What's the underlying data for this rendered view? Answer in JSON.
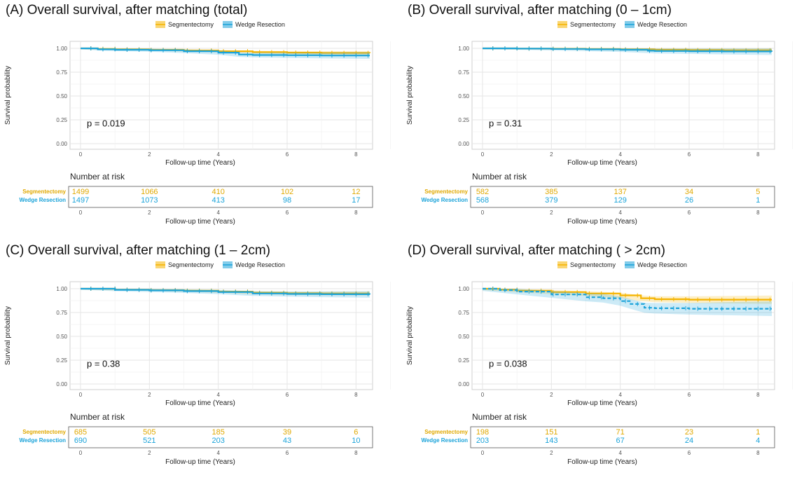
{
  "chart_data": [
    {
      "type": "line",
      "title": "(A) Overall survival, after matching (total)",
      "xlabel": "Follow-up time (Years)",
      "ylabel": "Survival probability",
      "ylim": [
        0,
        1
      ],
      "xlim": [
        0,
        8.4
      ],
      "yticks": [
        "0.00",
        "0.25",
        "0.50",
        "0.75",
        "1.00"
      ],
      "xticks": [
        "0",
        "2",
        "4",
        "6",
        "8"
      ],
      "p_value": "p = 0.019",
      "legend": [
        "Segmentectomy",
        "Wedge Resection"
      ],
      "series": [
        {
          "name": "Segmentectomy",
          "color": "#F5B400",
          "x": [
            0,
            0.5,
            1,
            2,
            3,
            4,
            5,
            6,
            7,
            8.4
          ],
          "y": [
            1.0,
            0.995,
            0.99,
            0.985,
            0.978,
            0.97,
            0.96,
            0.955,
            0.952,
            0.95
          ]
        },
        {
          "name": "Wedge Resection",
          "color": "#1BA3D9",
          "x": [
            0,
            0.5,
            1,
            2,
            3,
            4,
            4.6,
            5,
            6,
            7,
            8.4
          ],
          "y": [
            1.0,
            0.99,
            0.985,
            0.98,
            0.97,
            0.955,
            0.935,
            0.93,
            0.928,
            0.925,
            0.925
          ]
        }
      ],
      "risk_table": {
        "header": "Number at risk",
        "xlabel": "Follow-up time (Years)",
        "xticks": [
          "0",
          "2",
          "4",
          "6",
          "8"
        ],
        "rows": [
          {
            "label": "Segmentectomy",
            "values": [
              "1499",
              "1066",
              "410",
              "102",
              "12"
            ]
          },
          {
            "label": "Wedge Resection",
            "values": [
              "1497",
              "1073",
              "413",
              "98",
              "17"
            ]
          }
        ]
      }
    },
    {
      "type": "line",
      "title": "(B) Overall survival, after matching (0 – 1cm)",
      "xlabel": "Follow-up time (Years)",
      "ylabel": "Survival probability",
      "ylim": [
        0,
        1
      ],
      "xlim": [
        0,
        8.4
      ],
      "yticks": [
        "0.00",
        "0.25",
        "0.50",
        "0.75",
        "1.00"
      ],
      "xticks": [
        "0",
        "2",
        "4",
        "6",
        "8"
      ],
      "p_value": "p = 0.31",
      "legend": [
        "Segmentectomy",
        "Wedge Resection"
      ],
      "series": [
        {
          "name": "Segmentectomy",
          "color": "#F5B400",
          "x": [
            0,
            1,
            2,
            3,
            4,
            5,
            6,
            7,
            8.4
          ],
          "y": [
            1.0,
            0.998,
            0.996,
            0.994,
            0.99,
            0.985,
            0.982,
            0.98,
            0.98
          ]
        },
        {
          "name": "Wedge Resection",
          "color": "#1BA3D9",
          "x": [
            0,
            1,
            2,
            3,
            4,
            4.8,
            5,
            6,
            7,
            8.4
          ],
          "y": [
            1.0,
            0.998,
            0.994,
            0.99,
            0.985,
            0.975,
            0.972,
            0.97,
            0.968,
            0.965
          ]
        }
      ],
      "risk_table": {
        "header": "Number at risk",
        "xlabel": "Follow-up time (Years)",
        "xticks": [
          "0",
          "2",
          "4",
          "6",
          "8"
        ],
        "rows": [
          {
            "label": "Segmentectomy",
            "values": [
              "582",
              "385",
              "137",
              "34",
              "5"
            ]
          },
          {
            "label": "Wedge Resection",
            "values": [
              "568",
              "379",
              "129",
              "26",
              "1"
            ]
          }
        ]
      }
    },
    {
      "type": "line",
      "title": "(C) Overall survival, after matching (1 – 2cm)",
      "xlabel": "Follow-up time (Years)",
      "ylabel": "Survival probability",
      "ylim": [
        0,
        1
      ],
      "xlim": [
        0,
        8.4
      ],
      "yticks": [
        "0.00",
        "0.25",
        "0.50",
        "0.75",
        "1.00"
      ],
      "xticks": [
        "0",
        "2",
        "4",
        "6",
        "8"
      ],
      "p_value": "p = 0.38",
      "legend": [
        "Segmentectomy",
        "Wedge Resection"
      ],
      "series": [
        {
          "name": "Segmentectomy",
          "color": "#F5B400",
          "x": [
            0,
            1,
            2,
            3,
            4,
            5,
            6,
            7,
            8.4
          ],
          "y": [
            1.0,
            0.99,
            0.985,
            0.98,
            0.97,
            0.958,
            0.952,
            0.95,
            0.95
          ]
        },
        {
          "name": "Wedge Resection",
          "color": "#1BA3D9",
          "x": [
            0,
            1,
            2,
            3,
            4,
            5,
            6,
            7,
            8.4
          ],
          "y": [
            1.0,
            0.988,
            0.982,
            0.975,
            0.965,
            0.95,
            0.945,
            0.942,
            0.94
          ]
        }
      ],
      "risk_table": {
        "header": "Number at risk",
        "xlabel": "Follow-up time (Years)",
        "xticks": [
          "0",
          "2",
          "4",
          "6",
          "8"
        ],
        "rows": [
          {
            "label": "Segmentectomy",
            "values": [
              "685",
              "505",
              "185",
              "39",
              "6"
            ]
          },
          {
            "label": "Wedge Resection",
            "values": [
              "690",
              "521",
              "203",
              "43",
              "10"
            ]
          }
        ]
      }
    },
    {
      "type": "line",
      "title": "(D) Overall survival, after matching ( > 2cm)",
      "xlabel": "Follow-up time (Years)",
      "ylabel": "Survival probability",
      "ylim": [
        0,
        1
      ],
      "xlim": [
        0,
        8.4
      ],
      "yticks": [
        "0.00",
        "0.25",
        "0.50",
        "0.75",
        "1.00"
      ],
      "xticks": [
        "0",
        "2",
        "4",
        "6",
        "8"
      ],
      "p_value": "p = 0.038",
      "legend": [
        "Segmentectomy",
        "Wedge Resection"
      ],
      "series": [
        {
          "name": "Segmentectomy",
          "color": "#F5B400",
          "x": [
            0,
            0.5,
            1,
            2,
            3,
            4,
            4.6,
            5,
            6,
            7,
            8.4
          ],
          "y": [
            1.0,
            0.99,
            0.98,
            0.965,
            0.95,
            0.93,
            0.9,
            0.89,
            0.885,
            0.885,
            0.885
          ]
        },
        {
          "name": "Wedge Resection",
          "color": "#1BA3D9",
          "x": [
            0,
            0.5,
            1,
            2,
            3,
            3.5,
            4,
            4.3,
            4.7,
            5,
            6,
            7,
            8.4
          ],
          "y": [
            1.0,
            0.985,
            0.97,
            0.94,
            0.91,
            0.9,
            0.87,
            0.84,
            0.8,
            0.795,
            0.79,
            0.79,
            0.79
          ]
        }
      ],
      "risk_table": {
        "header": "Number at risk",
        "xlabel": "Follow-up time (Years)",
        "xticks": [
          "0",
          "2",
          "4",
          "6",
          "8"
        ],
        "rows": [
          {
            "label": "Segmentectomy",
            "values": [
              "198",
              "151",
              "71",
              "23",
              "1"
            ]
          },
          {
            "label": "Wedge Resection",
            "values": [
              "203",
              "143",
              "67",
              "24",
              "4"
            ]
          }
        ]
      }
    }
  ]
}
